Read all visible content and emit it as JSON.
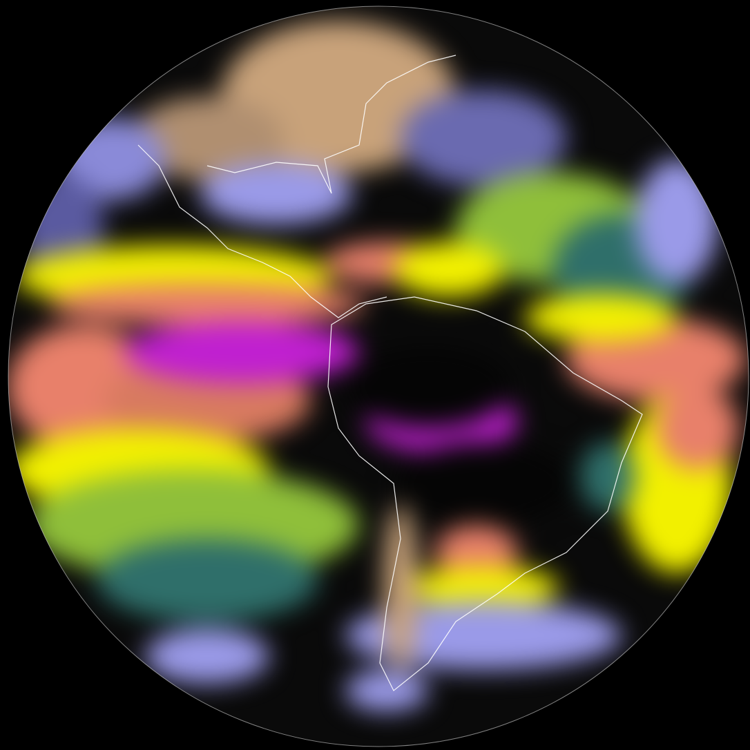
{
  "image": {
    "kind": "full-disk satellite moisture composite",
    "colors": {
      "background": "#000000",
      "very_dry": "#c8a27a",
      "dry": "#9a9ae8",
      "moderate": "#2f6f6a",
      "moist": "#8fbf3a",
      "moister": "#f2f000",
      "wet": "#e8806a",
      "very_wet": "#c020d0",
      "coastline": "#ffffff"
    }
  }
}
